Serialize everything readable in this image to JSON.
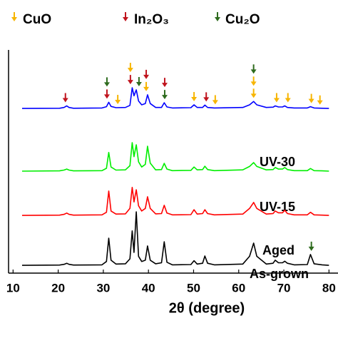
{
  "chart_data": {
    "type": "line",
    "xlabel": "2θ (degree)",
    "xlim": [
      9,
      82
    ],
    "xticks": [
      10,
      20,
      30,
      40,
      50,
      60,
      70,
      80
    ],
    "ylim": [
      0,
      100
    ],
    "phases": [
      {
        "name": "CuO",
        "color": "#f7b500"
      },
      {
        "name": "In₂O₃",
        "color": "#c0141e"
      },
      {
        "name": "Cu₂O",
        "color": "#2e6b1e"
      }
    ],
    "x": [
      12.0,
      20.3,
      21.3,
      21.9,
      22.4,
      23.4,
      29.7,
      30.7,
      31.2,
      31.7,
      32.8,
      34.9,
      35.9,
      36.4,
      36.8,
      37.3,
      37.8,
      38.5,
      39.3,
      39.8,
      40.4,
      41.6,
      42.9,
      43.5,
      44.1,
      45.3,
      49.4,
      50.1,
      50.8,
      52.0,
      52.5,
      53.1,
      54.6,
      60.9,
      62.4,
      63.3,
      64.0,
      66.1,
      67.6,
      68.1,
      68.8,
      69.7,
      70.2,
      70.8,
      72.3,
      75.2,
      75.9,
      76.7,
      78.5,
      80.0
    ],
    "series": [
      {
        "name": "UV-30",
        "color": "#0000ff",
        "values": [
          63.6,
          63.7,
          64.0,
          64.6,
          64.0,
          63.7,
          63.8,
          64.3,
          66.0,
          64.4,
          63.9,
          64.0,
          64.8,
          71.6,
          68.5,
          70.8,
          66.5,
          65.0,
          65.5,
          68.9,
          65.5,
          64.0,
          64.0,
          65.8,
          64.2,
          63.8,
          63.9,
          65.0,
          64.0,
          64.0,
          64.9,
          64.0,
          63.8,
          64.0,
          65.0,
          66.3,
          65.0,
          64.0,
          64.1,
          64.6,
          64.2,
          64.2,
          64.6,
          64.0,
          63.8,
          63.8,
          64.3,
          63.8,
          63.7,
          63.6
        ]
      },
      {
        "name": "UV-15",
        "color": "#00ee00",
        "values": [
          39.4,
          39.5,
          39.8,
          40.2,
          39.8,
          39.5,
          39.6,
          40.5,
          46.6,
          41.0,
          39.8,
          39.9,
          41.5,
          50.4,
          45.0,
          49.6,
          43.0,
          41.0,
          42.0,
          49.0,
          42.5,
          39.9,
          40.0,
          42.4,
          40.2,
          39.6,
          39.7,
          41.0,
          39.9,
          40.0,
          41.3,
          40.0,
          39.6,
          39.9,
          41.2,
          42.7,
          41.2,
          39.9,
          40.0,
          40.8,
          40.2,
          40.2,
          40.8,
          40.0,
          39.6,
          39.6,
          40.4,
          39.6,
          39.5,
          39.4
        ]
      },
      {
        "name": "Aged",
        "color": "#ff0000",
        "values": [
          22.3,
          22.4,
          22.7,
          23.2,
          22.7,
          22.4,
          22.5,
          23.5,
          31.7,
          24.0,
          22.8,
          22.9,
          25.0,
          33.1,
          27.5,
          32.2,
          26.0,
          24.0,
          25.0,
          29.5,
          25.0,
          22.9,
          23.0,
          26.2,
          23.2,
          22.5,
          22.6,
          24.5,
          22.8,
          23.0,
          24.5,
          23.0,
          22.5,
          22.8,
          25.0,
          27.3,
          25.0,
          22.8,
          23.0,
          24.0,
          23.3,
          23.3,
          24.3,
          23.0,
          22.5,
          22.5,
          23.5,
          22.5,
          22.4,
          22.3
        ]
      },
      {
        "name": "As-grown",
        "color": "#000000",
        "values": [
          3.0,
          3.1,
          3.4,
          3.8,
          3.4,
          3.1,
          3.2,
          4.5,
          13.5,
          5.0,
          3.5,
          3.6,
          5.5,
          16.3,
          8.0,
          23.7,
          6.5,
          4.5,
          5.0,
          10.5,
          5.0,
          3.6,
          4.0,
          12.1,
          4.2,
          3.2,
          3.3,
          4.8,
          3.5,
          3.8,
          6.6,
          3.8,
          3.2,
          3.5,
          6.5,
          11.6,
          6.5,
          3.5,
          3.8,
          5.0,
          4.0,
          4.0,
          4.6,
          3.8,
          3.2,
          3.3,
          7.2,
          3.6,
          3.2,
          3.0
        ]
      }
    ],
    "markers": [
      {
        "series": 0,
        "x": 21.6,
        "phase": 1
      },
      {
        "series": 0,
        "x": 30.8,
        "phase": 1
      },
      {
        "series": 0,
        "x": 30.8,
        "phase": 2
      },
      {
        "series": 0,
        "x": 33.2,
        "phase": 0
      },
      {
        "series": 0,
        "x": 36.0,
        "phase": 1
      },
      {
        "series": 0,
        "x": 36.0,
        "phase": 0
      },
      {
        "series": 0,
        "x": 37.9,
        "phase": 2
      },
      {
        "series": 0,
        "x": 39.5,
        "phase": 0
      },
      {
        "series": 0,
        "x": 39.5,
        "phase": 1
      },
      {
        "series": 0,
        "x": 43.6,
        "phase": 2
      },
      {
        "series": 0,
        "x": 43.6,
        "phase": 1
      },
      {
        "series": 0,
        "x": 47.4,
        "phase": 1
      },
      {
        "series": 0,
        "x": 50.1,
        "phase": 0
      },
      {
        "series": 0,
        "x": 52.8,
        "phase": 1
      },
      {
        "series": 0,
        "x": 54.8,
        "phase": 0
      },
      {
        "series": 0,
        "x": 59.7,
        "phase": 0
      },
      {
        "series": 0,
        "x": 63.3,
        "phase": 0
      },
      {
        "series": 0,
        "x": 63.3,
        "phase": 0
      },
      {
        "series": 0,
        "x": 63.3,
        "phase": 2
      },
      {
        "series": 0,
        "x": 68.4,
        "phase": 0
      },
      {
        "series": 0,
        "x": 70.9,
        "phase": 0
      },
      {
        "series": 0,
        "x": 76.1,
        "phase": 0
      },
      {
        "series": 0,
        "x": 78.0,
        "phase": 0
      },
      {
        "series": 3,
        "x": 76.1,
        "phase": 2
      }
    ]
  }
}
